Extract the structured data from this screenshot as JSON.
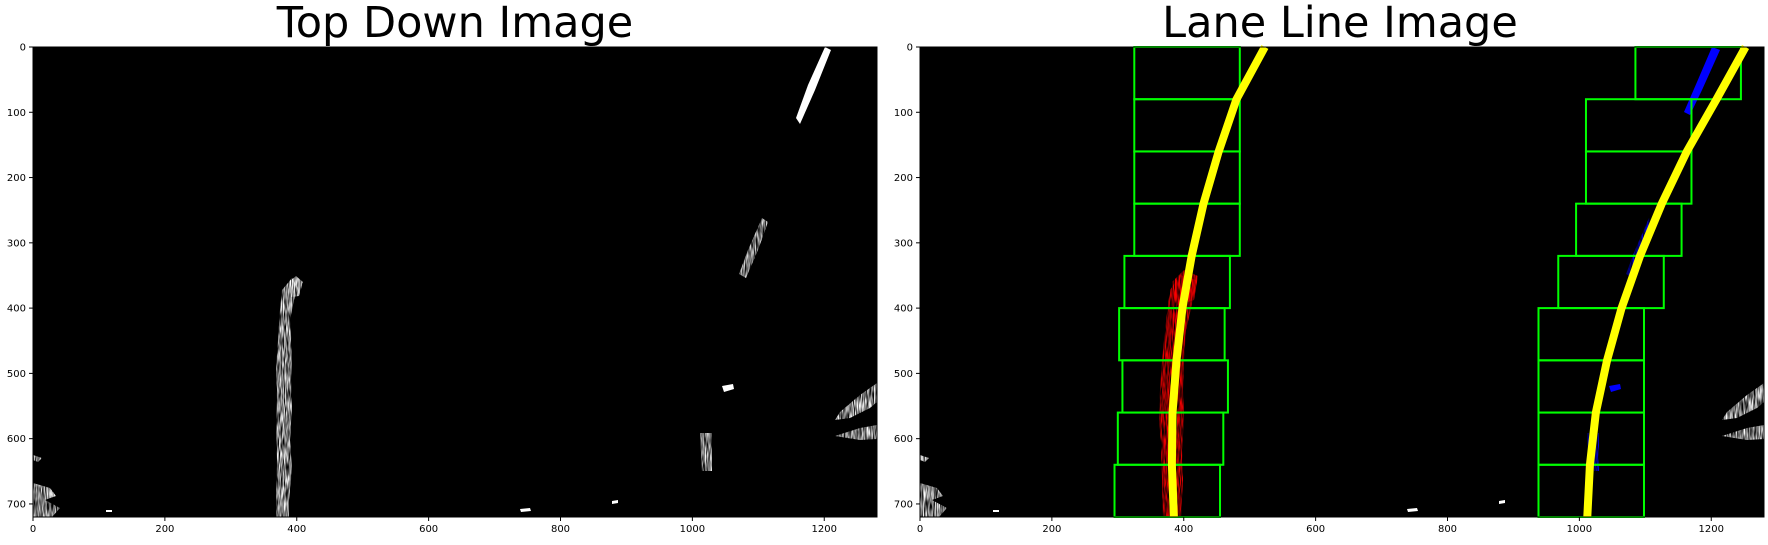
{
  "chart_data": [
    {
      "type": "image",
      "title": "Top Down Image",
      "xlim": [
        0,
        1280
      ],
      "ylim": [
        720,
        0
      ],
      "xticks": [
        0,
        200,
        400,
        600,
        800,
        1000,
        1200
      ],
      "yticks": [
        0,
        100,
        200,
        300,
        400,
        500,
        600,
        700
      ],
      "grid": false
    },
    {
      "type": "image",
      "title": "Lane Line Image",
      "xlim": [
        0,
        1280
      ],
      "ylim": [
        720,
        0
      ],
      "xticks": [
        0,
        200,
        400,
        600,
        800,
        1000,
        1200
      ],
      "yticks": [
        0,
        100,
        200,
        300,
        400,
        500,
        600,
        700
      ],
      "grid": false,
      "window_color": "#00ff00",
      "fit_color": "#ffff00",
      "left_pixels_color": "#ff0000",
      "right_pixels_color": "#0000ff",
      "left_fit_line": {
        "x": [
          385,
          382,
          383,
          389,
          398,
          412,
          430,
          453,
          480,
          523
        ],
        "y": [
          720,
          640,
          560,
          480,
          400,
          320,
          240,
          160,
          80,
          0
        ]
      },
      "right_fit_line": {
        "x": [
          1012,
          1016,
          1025,
          1042,
          1064,
          1092,
          1125,
          1163,
          1208,
          1252
        ],
        "y": [
          720,
          640,
          560,
          480,
          400,
          320,
          240,
          160,
          80,
          0
        ]
      },
      "left_windows": [
        {
          "x1": 295,
          "x2": 455,
          "y1": 640,
          "y2": 720
        },
        {
          "x1": 300,
          "x2": 460,
          "y1": 560,
          "y2": 640
        },
        {
          "x1": 307,
          "x2": 467,
          "y1": 480,
          "y2": 560
        },
        {
          "x1": 302,
          "x2": 462,
          "y1": 400,
          "y2": 480
        },
        {
          "x1": 310,
          "x2": 470,
          "y1": 320,
          "y2": 400
        },
        {
          "x1": 325,
          "x2": 485,
          "y1": 240,
          "y2": 320
        },
        {
          "x1": 325,
          "x2": 485,
          "y1": 160,
          "y2": 240
        },
        {
          "x1": 325,
          "x2": 485,
          "y1": 80,
          "y2": 160
        },
        {
          "x1": 325,
          "x2": 485,
          "y1": 0,
          "y2": 80
        }
      ],
      "right_windows": [
        {
          "x1": 938,
          "x2": 1098,
          "y1": 640,
          "y2": 720
        },
        {
          "x1": 938,
          "x2": 1098,
          "y1": 560,
          "y2": 640
        },
        {
          "x1": 938,
          "x2": 1098,
          "y1": 480,
          "y2": 560
        },
        {
          "x1": 938,
          "x2": 1098,
          "y1": 400,
          "y2": 480
        },
        {
          "x1": 968,
          "x2": 1128,
          "y1": 320,
          "y2": 400
        },
        {
          "x1": 995,
          "x2": 1155,
          "y1": 240,
          "y2": 320
        },
        {
          "x1": 1010,
          "x2": 1170,
          "y1": 160,
          "y2": 240
        },
        {
          "x1": 1010,
          "x2": 1170,
          "y1": 80,
          "y2": 160
        },
        {
          "x1": 1085,
          "x2": 1245,
          "y1": 0,
          "y2": 80
        }
      ]
    }
  ]
}
